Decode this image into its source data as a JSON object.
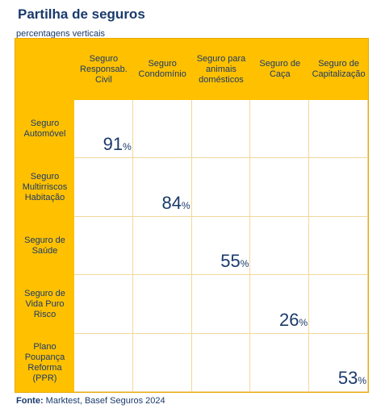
{
  "header": {
    "title": "Partilha de seguros",
    "subtitle": "percentagens verticais"
  },
  "footer": {
    "source_label": "Fonte:",
    "source_text": "Marktest, Basef Seguros 2024"
  },
  "chart_data": {
    "type": "table",
    "title": "Partilha de seguros",
    "subtitle": "percentagens verticais",
    "columns": [
      "Seguro Responsab. Civil",
      "Seguro Condomínio",
      "Seguro para animais domésticos",
      "Seguro de Caça",
      "Seguro de Capitalização"
    ],
    "rows": [
      "Seguro Automóvel",
      "Seguro Multirriscos Habitação",
      "Seguro de Saúde",
      "Seguro de Vida Puro Risco",
      "Plano Poupança Reforma (PPR)"
    ],
    "unit": "%",
    "cells": [
      {
        "row": 0,
        "col": 0,
        "value": 91
      },
      {
        "row": 1,
        "col": 1,
        "value": 84
      },
      {
        "row": 2,
        "col": 2,
        "value": 55
      },
      {
        "row": 3,
        "col": 3,
        "value": 26
      },
      {
        "row": 4,
        "col": 4,
        "value": 53
      }
    ],
    "colors": {
      "header_bg": "#ffc000",
      "text": "#1a3a6b",
      "cell_bg": "#ffffff"
    }
  }
}
